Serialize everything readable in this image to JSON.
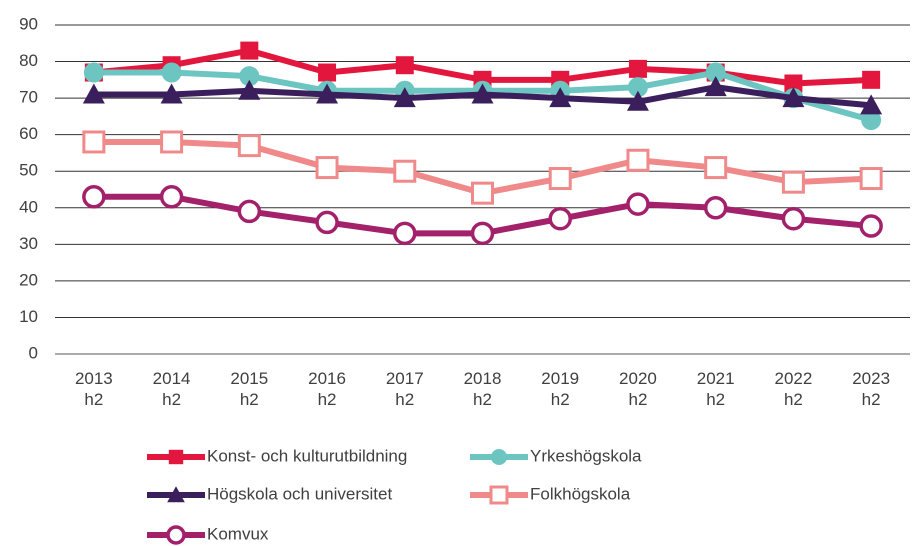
{
  "chart_data": {
    "type": "line",
    "categories": [
      "2013\nh2",
      "2014\nh2",
      "2015\nh2",
      "2016\nh2",
      "2017\nh2",
      "2018\nh2",
      "2019\nh2",
      "2020\nh2",
      "2021\nh2",
      "2022\nh2",
      "2023\nh2"
    ],
    "series": [
      {
        "name": "Konst- och kulturutbildning",
        "color": "#e3173e",
        "marker": "square",
        "values": [
          77,
          79,
          83,
          77,
          79,
          75,
          75,
          78,
          77,
          74,
          75
        ]
      },
      {
        "name": "Yrkeshögskola",
        "color": "#6cc5c1",
        "marker": "circle",
        "values": [
          77,
          77,
          76,
          72,
          72,
          72,
          72,
          73,
          77,
          70,
          64
        ]
      },
      {
        "name": "Högskola och universitet",
        "color": "#3b1f5c",
        "marker": "triangle",
        "values": [
          71,
          71,
          72,
          71,
          70,
          71,
          70,
          69,
          73,
          70,
          68
        ]
      },
      {
        "name": "Folkhögskola",
        "color": "#f08a8a",
        "marker": "square-open",
        "values": [
          58,
          58,
          57,
          51,
          50,
          44,
          48,
          53,
          51,
          47,
          48
        ]
      },
      {
        "name": "Komvux",
        "color": "#a3206a",
        "marker": "circle-open",
        "values": [
          43,
          43,
          39,
          36,
          33,
          33,
          37,
          41,
          40,
          37,
          35
        ]
      }
    ],
    "ylim": [
      0,
      90
    ],
    "yticks": [
      0,
      10,
      20,
      30,
      40,
      50,
      60,
      70,
      80,
      90
    ],
    "grid": true
  }
}
